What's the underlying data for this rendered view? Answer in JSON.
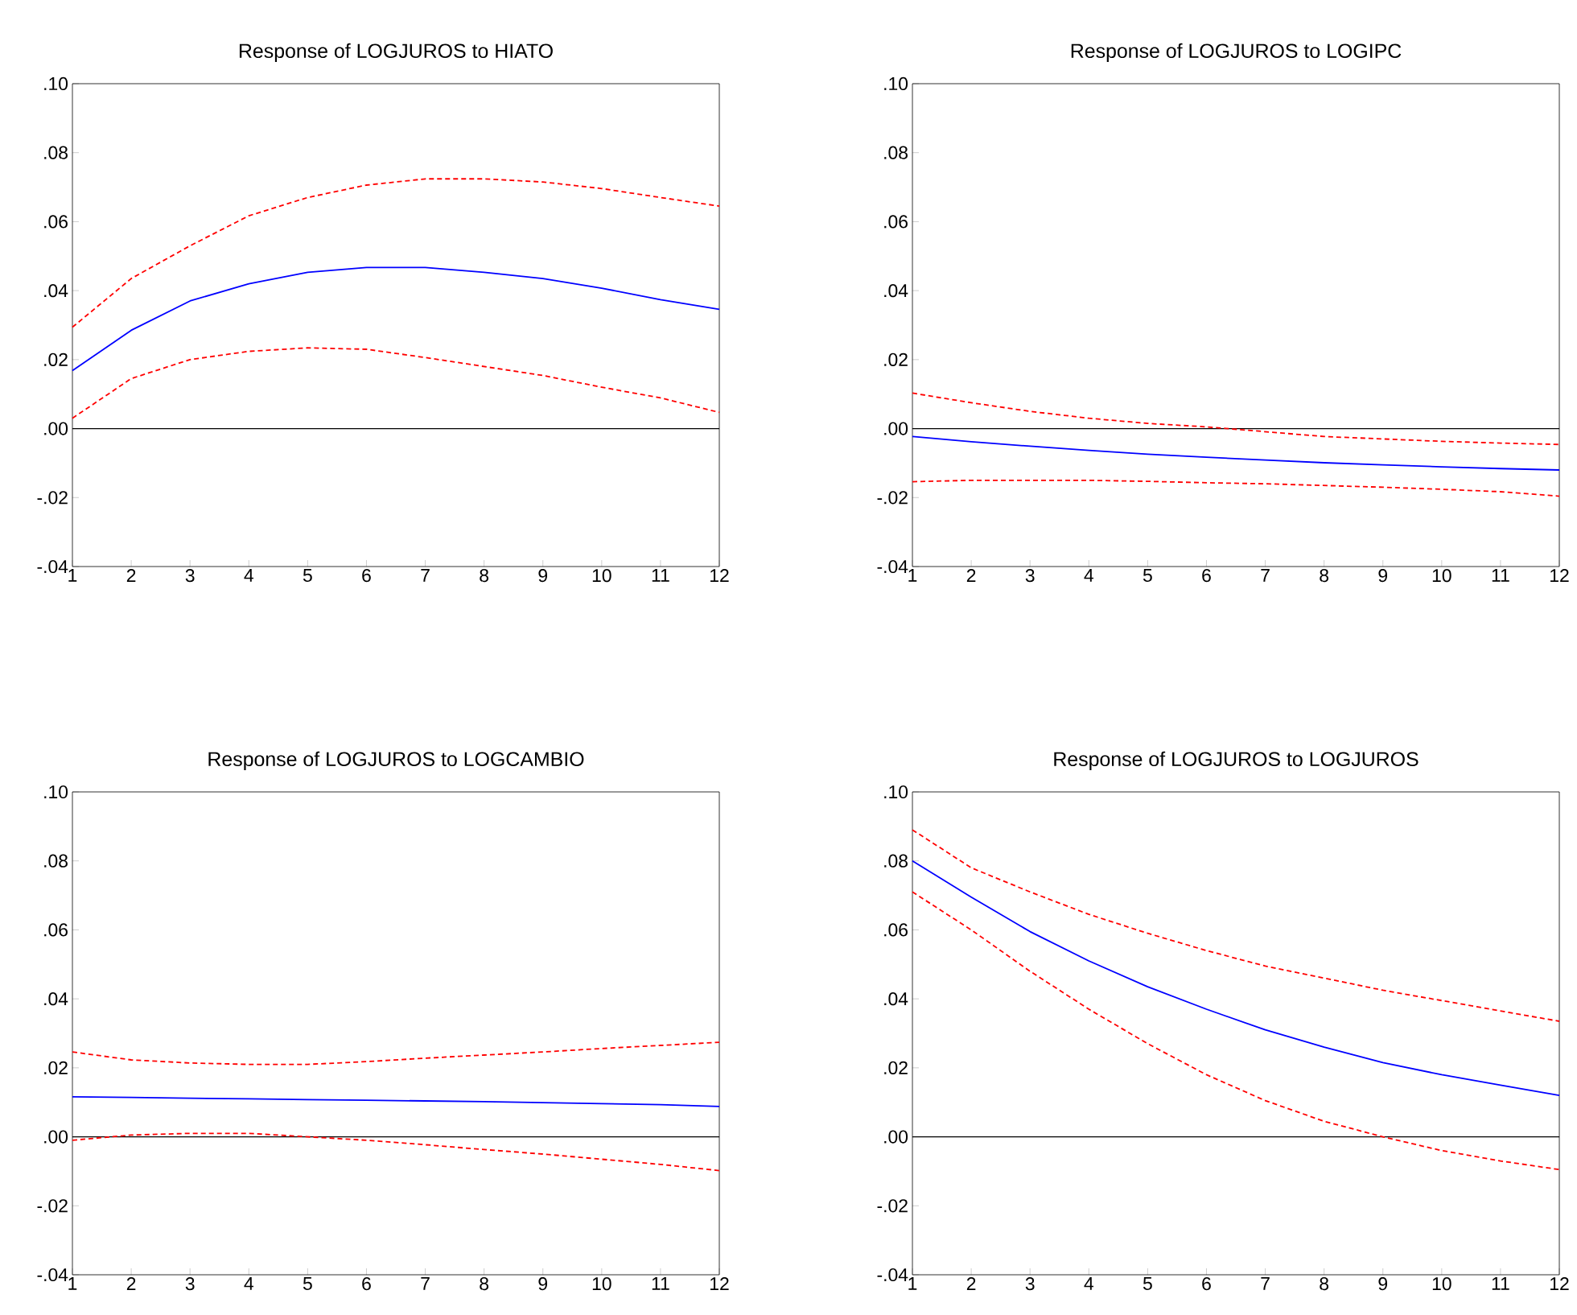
{
  "chart_data": [
    {
      "type": "line",
      "title": "Response of LOGJUROS to HIATO",
      "x": [
        1,
        2,
        3,
        4,
        5,
        6,
        7,
        8,
        9,
        10,
        11,
        12
      ],
      "xlim": [
        1,
        12
      ],
      "xticks": [
        1,
        2,
        3,
        4,
        5,
        6,
        7,
        8,
        9,
        10,
        11,
        12
      ],
      "ylim": [
        -0.04,
        0.1
      ],
      "yticks": [
        {
          "value": -0.04,
          "label": "-.04"
        },
        {
          "value": -0.02,
          "label": "-.02"
        },
        {
          "value": 0,
          "label": ".00"
        },
        {
          "value": 0.02,
          "label": ".02"
        },
        {
          "value": 0.04,
          "label": ".04"
        },
        {
          "value": 0.06,
          "label": ".06"
        },
        {
          "value": 0.08,
          "label": ".08"
        },
        {
          "value": 0.1,
          "label": ".10"
        }
      ],
      "ref_lines": [
        {
          "axis": "y",
          "value": 0,
          "color": "#000000"
        }
      ],
      "series": [
        {
          "color": "#0000ff",
          "line_style": "solid",
          "values": [
            0.0168,
            0.0285,
            0.037,
            0.042,
            0.0453,
            0.0467,
            0.0467,
            0.0453,
            0.0435,
            0.0407,
            0.0374,
            0.0346
          ]
        },
        {
          "color": "#ff0000",
          "line_style": "dashed",
          "values": [
            0.0294,
            0.0435,
            0.053,
            0.0617,
            0.067,
            0.0706,
            0.0724,
            0.0724,
            0.0715,
            0.0696,
            0.067,
            0.0645
          ]
        },
        {
          "color": "#ff0000",
          "line_style": "dashed",
          "values": [
            0.003,
            0.0145,
            0.02,
            0.0224,
            0.0234,
            0.023,
            0.0206,
            0.018,
            0.0154,
            0.012,
            0.0089,
            0.0047
          ]
        }
      ]
    },
    {
      "type": "line",
      "title": "Response of LOGJUROS to LOGIPC",
      "x": [
        1,
        2,
        3,
        4,
        5,
        6,
        7,
        8,
        9,
        10,
        11,
        12
      ],
      "xlim": [
        1,
        12
      ],
      "xticks": [
        1,
        2,
        3,
        4,
        5,
        6,
        7,
        8,
        9,
        10,
        11,
        12
      ],
      "ylim": [
        -0.04,
        0.1
      ],
      "yticks": [
        {
          "value": -0.04,
          "label": "-.04"
        },
        {
          "value": -0.02,
          "label": "-.02"
        },
        {
          "value": 0,
          "label": ".00"
        },
        {
          "value": 0.02,
          "label": ".02"
        },
        {
          "value": 0.04,
          "label": ".04"
        },
        {
          "value": 0.06,
          "label": ".06"
        },
        {
          "value": 0.08,
          "label": ".08"
        },
        {
          "value": 0.1,
          "label": ".10"
        }
      ],
      "ref_lines": [
        {
          "axis": "y",
          "value": 0,
          "color": "#000000"
        }
      ],
      "series": [
        {
          "color": "#0000ff",
          "line_style": "solid",
          "values": [
            -0.0023,
            -0.0038,
            -0.0051,
            -0.0063,
            -0.0074,
            -0.0083,
            -0.0091,
            -0.0099,
            -0.0105,
            -0.0111,
            -0.0116,
            -0.012
          ]
        },
        {
          "color": "#ff0000",
          "line_style": "dashed",
          "values": [
            0.0103,
            0.0075,
            0.005,
            0.003,
            0.0015,
            0.0005,
            -0.0009,
            -0.0023,
            -0.003,
            -0.0037,
            -0.0042,
            -0.0046
          ]
        },
        {
          "color": "#ff0000",
          "line_style": "dashed",
          "values": [
            -0.0154,
            -0.015,
            -0.015,
            -0.015,
            -0.0153,
            -0.0157,
            -0.016,
            -0.0165,
            -0.017,
            -0.0176,
            -0.0183,
            -0.0196
          ]
        }
      ]
    },
    {
      "type": "line",
      "title": "Response of LOGJUROS to LOGCAMBIO",
      "x": [
        1,
        2,
        3,
        4,
        5,
        6,
        7,
        8,
        9,
        10,
        11,
        12
      ],
      "xlim": [
        1,
        12
      ],
      "xticks": [
        1,
        2,
        3,
        4,
        5,
        6,
        7,
        8,
        9,
        10,
        11,
        12
      ],
      "ylim": [
        -0.04,
        0.1
      ],
      "yticks": [
        {
          "value": -0.04,
          "label": "-.04"
        },
        {
          "value": -0.02,
          "label": "-.02"
        },
        {
          "value": 0,
          "label": ".00"
        },
        {
          "value": 0.02,
          "label": ".02"
        },
        {
          "value": 0.04,
          "label": ".04"
        },
        {
          "value": 0.06,
          "label": ".06"
        },
        {
          "value": 0.08,
          "label": ".08"
        },
        {
          "value": 0.1,
          "label": ".10"
        }
      ],
      "ref_lines": [
        {
          "axis": "y",
          "value": 0,
          "color": "#000000"
        }
      ],
      "series": [
        {
          "color": "#0000ff",
          "line_style": "solid",
          "values": [
            0.0116,
            0.0114,
            0.0112,
            0.011,
            0.0108,
            0.0106,
            0.0104,
            0.0102,
            0.0099,
            0.0096,
            0.0093,
            0.0088
          ]
        },
        {
          "color": "#ff0000",
          "line_style": "dashed",
          "values": [
            0.0246,
            0.0223,
            0.0214,
            0.021,
            0.021,
            0.0218,
            0.0228,
            0.0237,
            0.0246,
            0.0256,
            0.0265,
            0.0274
          ]
        },
        {
          "color": "#ff0000",
          "line_style": "dashed",
          "values": [
            -0.001,
            0.0005,
            0.001,
            0.001,
            0.0,
            -0.001,
            -0.0023,
            -0.0037,
            -0.005,
            -0.0065,
            -0.008,
            -0.0098
          ]
        }
      ]
    },
    {
      "type": "line",
      "title": "Response of LOGJUROS to LOGJUROS",
      "x": [
        1,
        2,
        3,
        4,
        5,
        6,
        7,
        8,
        9,
        10,
        11,
        12
      ],
      "xlim": [
        1,
        12
      ],
      "xticks": [
        1,
        2,
        3,
        4,
        5,
        6,
        7,
        8,
        9,
        10,
        11,
        12
      ],
      "ylim": [
        -0.04,
        0.1
      ],
      "yticks": [
        {
          "value": -0.04,
          "label": "-.04"
        },
        {
          "value": -0.02,
          "label": "-.02"
        },
        {
          "value": 0,
          "label": ".00"
        },
        {
          "value": 0.02,
          "label": ".02"
        },
        {
          "value": 0.04,
          "label": ".04"
        },
        {
          "value": 0.06,
          "label": ".06"
        },
        {
          "value": 0.08,
          "label": ".08"
        },
        {
          "value": 0.1,
          "label": ".10"
        }
      ],
      "ref_lines": [
        {
          "axis": "y",
          "value": 0,
          "color": "#000000"
        }
      ],
      "series": [
        {
          "color": "#0000ff",
          "line_style": "solid",
          "values": [
            0.08,
            0.0695,
            0.0595,
            0.051,
            0.0435,
            0.037,
            0.031,
            0.026,
            0.0215,
            0.018,
            0.015,
            0.012
          ]
        },
        {
          "color": "#ff0000",
          "line_style": "dashed",
          "values": [
            0.089,
            0.078,
            0.071,
            0.0645,
            0.059,
            0.054,
            0.0495,
            0.046,
            0.0425,
            0.0395,
            0.0365,
            0.0335
          ]
        },
        {
          "color": "#ff0000",
          "line_style": "dashed",
          "values": [
            0.071,
            0.06,
            0.048,
            0.037,
            0.027,
            0.018,
            0.0105,
            0.0045,
            0.0,
            -0.004,
            -0.007,
            -0.0095
          ]
        }
      ]
    }
  ]
}
